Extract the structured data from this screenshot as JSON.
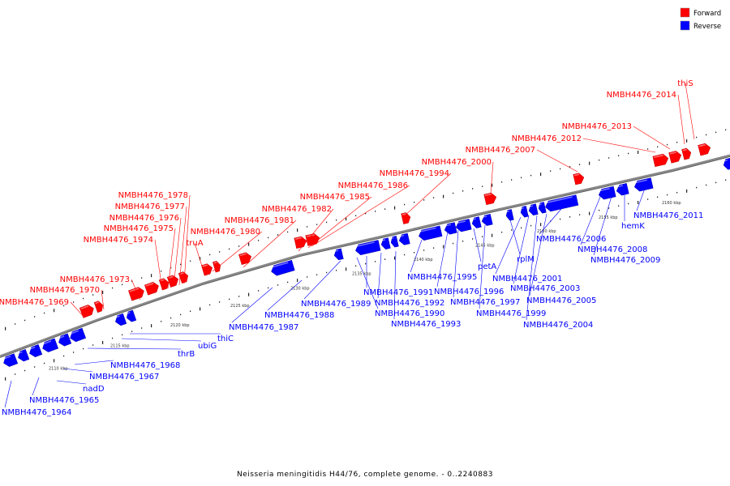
{
  "caption": "Neisseria meningitidis H44/76, complete genome. - 0..2240883",
  "legend": {
    "forward": {
      "label": "Forward",
      "color": "#ff0000"
    },
    "reverse": {
      "label": "Reverse",
      "color": "#0000ff"
    }
  },
  "colors": {
    "forward": "#ff0000",
    "reverse": "#0000ff",
    "backbone": "#888888"
  },
  "scale_labels": [
    "2110 kbp",
    "2115 kbp",
    "2120 kbp",
    "2125 kbp",
    "2130 kbp",
    "2135 kbp",
    "2140 kbp",
    "2145 kbp",
    "2150 kbp",
    "2155 kbp",
    "2160 kbp"
  ],
  "forward_labels": [
    "NMBH4476_1969",
    "NMBH4476_1970",
    "NMBH4476_1973",
    "NMBH4476_1974",
    "NMBH4476_1975",
    "NMBH4476_1976",
    "NMBH4476_1977",
    "NMBH4476_1978",
    "truA",
    "NMBH4476_1980",
    "NMBH4476_1981",
    "NMBH4476_1982",
    "NMBH4476_1985",
    "NMBH4476_1986",
    "NMBH4476_1994",
    "NMBH4476_2000",
    "NMBH4476_2007",
    "NMBH4476_2012",
    "NMBH4476_2013",
    "NMBH4476_2014",
    "thiS"
  ],
  "reverse_labels": [
    "NMBH4476_1964",
    "NMBH4476_1965",
    "nadD",
    "NMBH4476_1967",
    "NMBH4476_1968",
    "thrB",
    "ubiG",
    "thiC",
    "NMBH4476_1987",
    "NMBH4476_1988",
    "NMBH4476_1989",
    "NMBH4476_1990",
    "NMBH4476_1991",
    "NMBH4476_1992",
    "NMBH4476_1993",
    "NMBH4476_1995",
    "NMBH4476_1996",
    "NMBH4476_1997",
    "petA",
    "NMBH4476_1999",
    "rplM",
    "NMBH4476_2001",
    "NMBH4476_2003",
    "NMBH4476_2004",
    "NMBH4476_2005",
    "NMBH4476_2006",
    "NMBH4476_2008",
    "NMBH4476_2009",
    "hemK",
    "NMBH4476_2011"
  ]
}
